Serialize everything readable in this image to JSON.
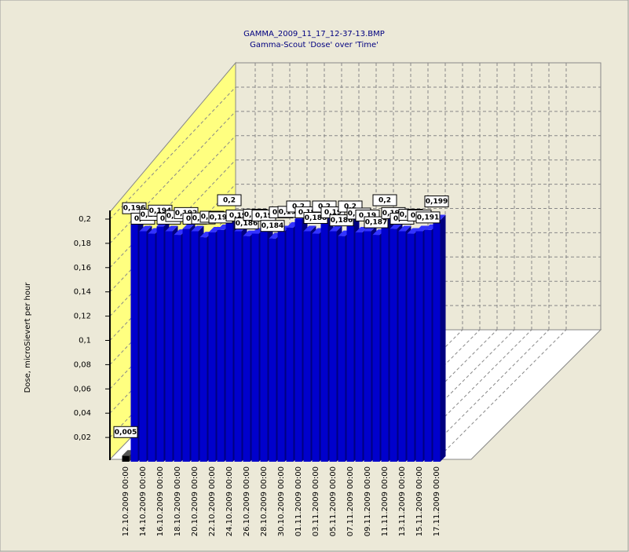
{
  "chart_data": {
    "type": "bar3d",
    "title": "GAMMA_2009_11_17_12-37-13.BMP",
    "subtitle": "Gamma-Scout 'Dose' over 'Time'",
    "y_label": "Dose, microSievert per hour",
    "categories": [
      "12.10.2009 00:00",
      null,
      "14.10.2009 00:00",
      null,
      "16.10.2009 00:00",
      null,
      "18.10.2009 00:00",
      null,
      "20.10.2009 00:00",
      null,
      "22.10.2009 00:00",
      null,
      "24.10.2009 00:00",
      null,
      "26.10.2009 00:00",
      null,
      "28.10.2009 00:00",
      null,
      "30.10.2009 00:00",
      null,
      "01.11.2009 00:00",
      null,
      "03.11.2009 00:00",
      null,
      "05.11.2009 00:00",
      null,
      "07.11.2009 00:00",
      null,
      "09.11.2009 00:00",
      null,
      "11.11.2009 00:00",
      null,
      "13.11.2009 00:00",
      null,
      "15.11.2009 00:00",
      null,
      "17.11.2009 00:00"
    ],
    "values": [
      0.005,
      0.196,
      0.19,
      0.188,
      0.194,
      0.19,
      0.187,
      0.192,
      0.19,
      0.185,
      0.189,
      0.191,
      0.2,
      0.19,
      0.186,
      0.188,
      0.19,
      0.184,
      0.19,
      0.193,
      0.2,
      0.19,
      0.188,
      0.2,
      0.19,
      0.186,
      0.2,
      0.189,
      0.19,
      0.187,
      0.2,
      0.192,
      0.19,
      0.188,
      0.19,
      0.191,
      0.199
    ],
    "value_labels": [
      "0,005",
      "0,196",
      "0,19",
      "0,188",
      "0,194",
      "0,19",
      "0,187",
      "0,192",
      "0,19",
      "0,185",
      "0,189",
      "0,191",
      "0,2",
      "0,19",
      "0,186",
      "0,188",
      "0,19",
      "0,184",
      "0,19",
      "0,193",
      "0,2",
      "0,19",
      "0,188",
      "0,2",
      "0,19",
      "0,186",
      "0,2",
      "0,189",
      "0,19",
      "0,187",
      "0,2",
      "0,192",
      "0,19",
      "0,188",
      "0,19",
      "0,191",
      "0,199"
    ],
    "series_colors": [
      "#000000",
      "#0000cc"
    ],
    "ylim": [
      0,
      0.2
    ],
    "yticks": [
      {
        "value": 0.02,
        "label": "0,02"
      },
      {
        "value": 0.04,
        "label": "0,04"
      },
      {
        "value": 0.06,
        "label": "0,06"
      },
      {
        "value": 0.08,
        "label": "0,08"
      },
      {
        "value": 0.1,
        "label": "0,1"
      },
      {
        "value": 0.12,
        "label": "0,12"
      },
      {
        "value": 0.14,
        "label": "0,14"
      },
      {
        "value": 0.16,
        "label": "0,16"
      },
      {
        "value": 0.18,
        "label": "0,18"
      },
      {
        "value": 0.2,
        "label": "0,2"
      }
    ],
    "grid": true
  }
}
